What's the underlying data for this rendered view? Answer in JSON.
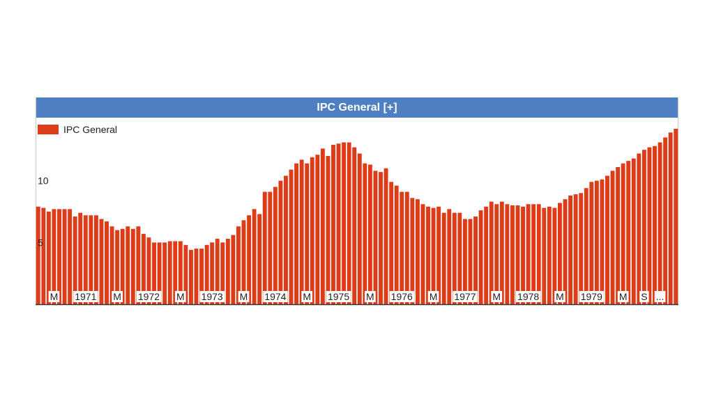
{
  "chart_data": {
    "type": "bar",
    "title": "IPC General [+]",
    "xlabel": "",
    "ylabel": "",
    "ylim": [
      0,
      14.2
    ],
    "yticks": [
      5,
      10
    ],
    "grid": false,
    "legend": {
      "position": "top-left",
      "entries": [
        "IPC General"
      ]
    },
    "colors": {
      "bar": "#de3b18",
      "header": "#4e80c1",
      "axis": "#333333"
    },
    "x_tick_labels": [
      "M",
      "1971",
      "M",
      "1972",
      "M",
      "1973",
      "M",
      "1974",
      "M",
      "1975",
      "M",
      "1976",
      "M",
      "1977",
      "M",
      "1978",
      "M",
      "1979",
      "M",
      "S",
      "..."
    ],
    "x_tick_positions": [
      3,
      9,
      15,
      21,
      27,
      33,
      39,
      45,
      51,
      57,
      63,
      69,
      75,
      81,
      87,
      93,
      99,
      105,
      111,
      115,
      118
    ],
    "series": [
      {
        "name": "IPC General",
        "values": [
          7.9,
          7.8,
          7.5,
          7.7,
          7.7,
          7.7,
          7.7,
          7.1,
          7.4,
          7.2,
          7.2,
          7.2,
          6.9,
          6.7,
          6.3,
          6.0,
          6.1,
          6.3,
          6.1,
          6.3,
          5.7,
          5.4,
          5.0,
          5.0,
          5.0,
          5.1,
          5.1,
          5.1,
          4.8,
          4.4,
          4.5,
          4.5,
          4.8,
          5.0,
          5.3,
          5.0,
          5.3,
          5.6,
          6.3,
          6.8,
          7.2,
          7.7,
          7.3,
          9.1,
          9.1,
          9.5,
          10.0,
          10.4,
          10.9,
          11.4,
          11.7,
          11.4,
          11.9,
          12.1,
          12.6,
          12.0,
          12.9,
          13.0,
          13.1,
          13.1,
          12.7,
          12.2,
          11.4,
          11.3,
          10.8,
          10.7,
          11.0,
          9.9,
          9.6,
          9.1,
          9.1,
          8.6,
          8.5,
          8.1,
          7.9,
          7.8,
          7.9,
          7.4,
          7.7,
          7.4,
          7.4,
          6.9,
          6.9,
          7.1,
          7.6,
          7.9,
          8.3,
          8.1,
          8.3,
          8.1,
          8.0,
          8.0,
          7.9,
          8.1,
          8.1,
          8.1,
          7.8,
          7.9,
          7.8,
          8.2,
          8.5,
          8.8,
          8.9,
          9.0,
          9.4,
          9.9,
          10.0,
          10.1,
          10.4,
          10.8,
          11.1,
          11.4,
          11.6,
          11.8,
          12.2,
          12.5,
          12.7,
          12.8,
          13.1,
          13.5,
          13.9,
          14.2
        ]
      }
    ]
  }
}
